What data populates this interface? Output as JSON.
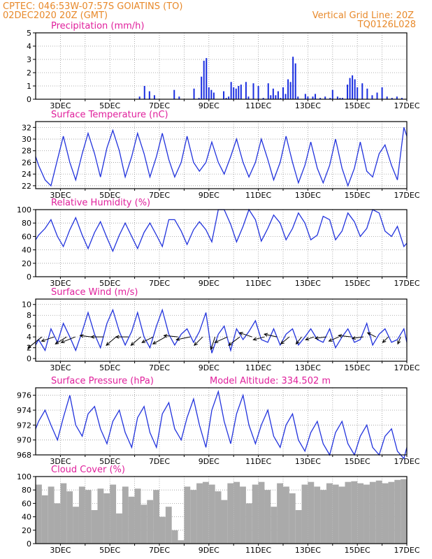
{
  "header": {
    "left_line1": "CPTEC:   046:53W-07:57S   GOIATINS (TO)",
    "left_line2": "02DEC2020 20Z (GMT)",
    "right_line1": "Vertical Grid Line: 20Z",
    "right_line2": "TQ0126L028"
  },
  "colors": {
    "line": "#2233dd",
    "bar": "#1a2ee0",
    "cloud": "#aaaaaa",
    "title": "#e0209c",
    "header": "#e8892a"
  },
  "x_labels": [
    "3DEC",
    "5DEC",
    "7DEC",
    "9DEC",
    "11DEC",
    "13DEC",
    "15DEC",
    "17DEC"
  ],
  "chart_data": [
    {
      "type": "bar",
      "title": "Precipitation (mm/h)",
      "x": [
        6.2,
        6.4,
        6.6,
        6.8,
        7.6,
        7.8,
        8.4,
        8.6,
        8.7,
        8.8,
        8.9,
        9.0,
        9.1,
        9.2,
        9.6,
        9.7,
        9.8,
        9.9,
        10.0,
        10.1,
        10.2,
        10.3,
        10.5,
        10.6,
        10.8,
        11.0,
        11.2,
        11.4,
        11.5,
        11.6,
        11.7,
        11.8,
        11.9,
        12.0,
        12.1,
        12.2,
        12.3,
        12.4,
        12.5,
        12.6,
        12.9,
        13.0,
        13.2,
        13.3,
        13.5,
        13.7,
        13.9,
        14.0,
        14.2,
        14.3,
        14.4,
        14.6,
        14.7,
        14.8,
        14.9,
        15.0,
        15.2,
        15.4,
        15.6,
        15.8,
        16.0,
        16.2,
        16.4,
        16.6,
        16.8
      ],
      "values": [
        0.2,
        1.0,
        0.6,
        0.3,
        0.7,
        0.2,
        0.8,
        0.1,
        1.7,
        2.9,
        3.1,
        0.9,
        0.7,
        0.5,
        0.6,
        0.1,
        0.2,
        1.3,
        0.9,
        0.8,
        1.0,
        1.1,
        1.3,
        0.2,
        1.2,
        1.0,
        0.1,
        1.2,
        0.3,
        0.8,
        0.3,
        0.6,
        0.1,
        0.9,
        0.4,
        1.5,
        1.3,
        3.2,
        2.7,
        0.2,
        0.4,
        0.2,
        0.2,
        0.4,
        0.1,
        0.2,
        0.1,
        0.7,
        0.2,
        0.1,
        0.1,
        1.1,
        1.6,
        1.8,
        1.5,
        0.9,
        1.2,
        0.8,
        0.3,
        0.5,
        0.9,
        0.2,
        0.1,
        0.2,
        0.1
      ],
      "xlim": [
        2.0,
        17.0
      ],
      "ylim": [
        0,
        5
      ],
      "yticks": [
        0,
        1,
        2,
        3,
        4,
        5
      ]
    },
    {
      "type": "line",
      "title": "Surface Temperature (nC)",
      "x": [
        2.0,
        2.12,
        2.38,
        2.62,
        2.88,
        3.12,
        3.38,
        3.62,
        3.88,
        4.12,
        4.38,
        4.62,
        4.88,
        5.12,
        5.38,
        5.62,
        5.88,
        6.12,
        6.38,
        6.62,
        6.88,
        7.12,
        7.38,
        7.62,
        7.88,
        8.12,
        8.38,
        8.62,
        8.88,
        9.12,
        9.38,
        9.62,
        9.88,
        10.12,
        10.38,
        10.62,
        10.88,
        11.12,
        11.38,
        11.62,
        11.88,
        12.12,
        12.38,
        12.62,
        12.88,
        13.12,
        13.38,
        13.62,
        13.88,
        14.12,
        14.38,
        14.62,
        14.88,
        15.12,
        15.38,
        15.62,
        15.88,
        16.12,
        16.38,
        16.62,
        16.88,
        17.0
      ],
      "values": [
        27.0,
        25.5,
        23.0,
        22.0,
        26.5,
        30.5,
        26.0,
        23.0,
        27.5,
        31.0,
        27.5,
        23.5,
        28.5,
        31.5,
        28.0,
        23.5,
        27.0,
        31.0,
        27.5,
        23.5,
        27.0,
        31.0,
        26.5,
        23.5,
        26.0,
        30.5,
        26.0,
        24.5,
        26.0,
        29.5,
        26.0,
        24.0,
        27.0,
        30.0,
        26.0,
        23.5,
        26.0,
        30.0,
        26.5,
        23.0,
        26.0,
        30.5,
        26.0,
        22.5,
        25.5,
        29.5,
        25.0,
        22.5,
        25.5,
        30.0,
        25.0,
        22.0,
        25.0,
        29.5,
        24.5,
        23.5,
        27.5,
        29.0,
        25.5,
        23.0,
        32.0,
        30.5
      ],
      "xlim": [
        2.0,
        17.0
      ],
      "ylim": [
        21.5,
        33
      ],
      "yticks": [
        22,
        24,
        26,
        28,
        30,
        32
      ]
    },
    {
      "type": "line",
      "title": "Relative Humidity (%)",
      "x": [
        2.0,
        2.12,
        2.38,
        2.62,
        2.88,
        3.12,
        3.38,
        3.62,
        3.88,
        4.12,
        4.38,
        4.62,
        4.88,
        5.12,
        5.38,
        5.62,
        5.88,
        6.12,
        6.38,
        6.62,
        6.88,
        7.12,
        7.38,
        7.62,
        7.88,
        8.12,
        8.38,
        8.62,
        8.88,
        9.12,
        9.38,
        9.62,
        9.88,
        10.12,
        10.38,
        10.62,
        10.88,
        11.12,
        11.38,
        11.62,
        11.88,
        12.12,
        12.38,
        12.62,
        12.88,
        13.12,
        13.38,
        13.62,
        13.88,
        14.12,
        14.38,
        14.62,
        14.88,
        15.12,
        15.38,
        15.62,
        15.88,
        16.12,
        16.38,
        16.62,
        16.88,
        17.0
      ],
      "values": [
        55,
        62,
        72,
        85,
        60,
        45,
        70,
        88,
        62,
        42,
        66,
        82,
        58,
        38,
        62,
        80,
        60,
        42,
        66,
        80,
        62,
        45,
        85,
        85,
        68,
        48,
        70,
        82,
        70,
        52,
        100,
        100,
        78,
        52,
        75,
        100,
        85,
        53,
        72,
        92,
        80,
        55,
        72,
        95,
        80,
        55,
        62,
        90,
        85,
        55,
        68,
        95,
        82,
        60,
        72,
        100,
        95,
        68,
        60,
        75,
        45,
        50
      ],
      "xlim": [
        2.0,
        17.0
      ],
      "ylim": [
        0,
        100
      ],
      "yticks": [
        0,
        20,
        40,
        60,
        80,
        100
      ]
    },
    {
      "type": "line",
      "title": "Surface Wind (m/s)",
      "x": [
        2.0,
        2.12,
        2.38,
        2.62,
        2.88,
        3.12,
        3.38,
        3.62,
        3.88,
        4.12,
        4.38,
        4.62,
        4.88,
        5.12,
        5.38,
        5.62,
        5.88,
        6.12,
        6.38,
        6.62,
        6.88,
        7.12,
        7.38,
        7.62,
        7.88,
        8.12,
        8.38,
        8.62,
        8.88,
        9.12,
        9.38,
        9.62,
        9.88,
        10.12,
        10.38,
        10.62,
        10.88,
        11.12,
        11.38,
        11.62,
        11.88,
        12.12,
        12.38,
        12.62,
        12.88,
        13.12,
        13.38,
        13.62,
        13.88,
        14.12,
        14.38,
        14.62,
        14.88,
        15.12,
        15.38,
        15.62,
        15.88,
        16.12,
        16.38,
        16.62,
        16.88,
        17.0
      ],
      "values": [
        2.5,
        3.5,
        1.5,
        5.5,
        3.0,
        6.5,
        4.0,
        1.5,
        5.0,
        8.5,
        4.5,
        2.0,
        6.5,
        9.0,
        5.0,
        2.5,
        5.0,
        8.5,
        4.0,
        2.0,
        6.0,
        9.0,
        4.5,
        2.5,
        4.5,
        5.5,
        3.0,
        5.0,
        8.5,
        1.0,
        4.5,
        6.0,
        1.5,
        5.5,
        3.5,
        5.0,
        7.0,
        3.5,
        3.0,
        5.5,
        2.5,
        4.5,
        5.5,
        2.5,
        4.0,
        5.5,
        3.5,
        3.0,
        5.5,
        2.0,
        4.0,
        5.5,
        3.0,
        3.5,
        6.5,
        2.5,
        4.5,
        5.5,
        3.0,
        3.5,
        5.5,
        3.0
      ],
      "wind_vectors": [
        {
          "day": 2.25,
          "u": -1.0,
          "v": -0.8
        },
        {
          "day": 2.75,
          "u": -0.9,
          "v": -0.3
        },
        {
          "day": 3.25,
          "u": -0.8,
          "v": -0.5
        },
        {
          "day": 3.6,
          "u": -1.0,
          "v": -0.4
        },
        {
          "day": 4.25,
          "u": -0.8,
          "v": 0.1
        },
        {
          "day": 4.75,
          "u": -0.9,
          "v": 0.0
        },
        {
          "day": 5.25,
          "u": -0.7,
          "v": -0.6
        },
        {
          "day": 5.75,
          "u": -0.9,
          "v": 0.0
        },
        {
          "day": 6.25,
          "u": -0.7,
          "v": -0.6
        },
        {
          "day": 6.75,
          "u": -0.8,
          "v": -0.4
        },
        {
          "day": 7.25,
          "u": -0.9,
          "v": -0.5
        },
        {
          "day": 7.75,
          "u": -1.0,
          "v": 0.1
        },
        {
          "day": 8.25,
          "u": -1.0,
          "v": -0.2
        },
        {
          "day": 8.75,
          "u": -0.6,
          "v": -0.6
        },
        {
          "day": 9.25,
          "u": -0.3,
          "v": -0.9
        },
        {
          "day": 9.75,
          "u": -0.9,
          "v": -0.4
        },
        {
          "day": 10.25,
          "u": -0.8,
          "v": -0.6
        },
        {
          "day": 10.75,
          "u": -0.9,
          "v": 0.3
        },
        {
          "day": 11.25,
          "u": -0.8,
          "v": -0.2
        },
        {
          "day": 11.75,
          "u": -0.9,
          "v": 0.2
        },
        {
          "day": 12.25,
          "u": -0.6,
          "v": -0.5
        },
        {
          "day": 12.75,
          "u": -0.4,
          "v": -0.5
        },
        {
          "day": 13.25,
          "u": -0.6,
          "v": -0.2
        },
        {
          "day": 13.75,
          "u": -0.8,
          "v": -0.1
        },
        {
          "day": 14.25,
          "u": -0.7,
          "v": -0.3
        },
        {
          "day": 14.75,
          "u": -0.9,
          "v": 0.1
        },
        {
          "day": 15.25,
          "u": -0.8,
          "v": -0.1
        },
        {
          "day": 15.75,
          "u": -0.6,
          "v": 0.3
        },
        {
          "day": 16.25,
          "u": -0.4,
          "v": -0.4
        },
        {
          "day": 16.75,
          "u": -0.2,
          "v": -0.5
        }
      ],
      "xlim": [
        2.0,
        17.0
      ],
      "ylim": [
        -0.5,
        11
      ],
      "yticks": [
        0,
        2,
        4,
        6,
        8,
        10
      ]
    },
    {
      "type": "line",
      "title": "Surface Pressure (hPa)",
      "annotation": "Model Altitude: 334.502 m",
      "x": [
        2.0,
        2.12,
        2.38,
        2.62,
        2.88,
        3.12,
        3.38,
        3.62,
        3.88,
        4.12,
        4.38,
        4.62,
        4.88,
        5.12,
        5.38,
        5.62,
        5.88,
        6.12,
        6.38,
        6.62,
        6.88,
        7.12,
        7.38,
        7.62,
        7.88,
        8.12,
        8.38,
        8.62,
        8.88,
        9.12,
        9.38,
        9.62,
        9.88,
        10.12,
        10.38,
        10.62,
        10.88,
        11.12,
        11.38,
        11.62,
        11.88,
        12.12,
        12.38,
        12.62,
        12.88,
        13.12,
        13.38,
        13.62,
        13.88,
        14.12,
        14.38,
        14.62,
        14.88,
        15.12,
        15.38,
        15.62,
        15.88,
        16.12,
        16.38,
        16.62,
        16.88,
        17.0
      ],
      "values": [
        971.5,
        972.5,
        974.0,
        972.0,
        970.0,
        973.0,
        976.0,
        972.0,
        970.5,
        973.5,
        974.5,
        971.5,
        969.5,
        972.5,
        974.0,
        971.0,
        969.0,
        973.0,
        974.5,
        971.0,
        969.0,
        973.5,
        975.0,
        971.5,
        970.0,
        973.0,
        975.5,
        972.0,
        969.0,
        974.0,
        976.5,
        972.5,
        969.5,
        973.5,
        976.0,
        972.0,
        969.5,
        972.0,
        974.0,
        970.5,
        969.0,
        972.0,
        973.5,
        970.0,
        968.5,
        971.0,
        972.5,
        969.5,
        968.0,
        971.0,
        972.5,
        969.5,
        968.0,
        970.5,
        972.0,
        969.0,
        968.0,
        970.5,
        971.5,
        968.5,
        967.5,
        969.0
      ],
      "xlim": [
        2.0,
        17.0
      ],
      "ylim": [
        968,
        977
      ],
      "yticks": [
        968,
        970,
        972,
        974,
        976
      ]
    },
    {
      "type": "bar",
      "title": "Cloud Cover (%)",
      "x": [
        2.0,
        2.25,
        2.5,
        2.75,
        3.0,
        3.25,
        3.5,
        3.75,
        4.0,
        4.25,
        4.5,
        4.75,
        5.0,
        5.25,
        5.5,
        5.75,
        6.0,
        6.25,
        6.5,
        6.75,
        7.0,
        7.25,
        7.5,
        7.75,
        8.0,
        8.25,
        8.5,
        8.75,
        9.0,
        9.25,
        9.5,
        9.75,
        10.0,
        10.25,
        10.5,
        10.75,
        11.0,
        11.25,
        11.5,
        11.75,
        12.0,
        12.25,
        12.5,
        12.75,
        13.0,
        13.25,
        13.5,
        13.75,
        14.0,
        14.25,
        14.5,
        14.75,
        15.0,
        15.25,
        15.5,
        15.75,
        16.0,
        16.25,
        16.5,
        16.75
      ],
      "values": [
        88,
        72,
        85,
        60,
        90,
        78,
        55,
        85,
        80,
        50,
        82,
        75,
        88,
        45,
        85,
        70,
        82,
        58,
        65,
        80,
        40,
        55,
        20,
        5,
        85,
        80,
        90,
        92,
        88,
        78,
        65,
        90,
        92,
        85,
        60,
        88,
        92,
        80,
        55,
        90,
        85,
        75,
        50,
        88,
        92,
        85,
        80,
        90,
        88,
        85,
        92,
        93,
        90,
        88,
        92,
        94,
        90,
        92,
        95,
        96
      ],
      "xlim": [
        2.0,
        17.0
      ],
      "ylim": [
        0,
        100
      ],
      "yticks": [
        0,
        20,
        40,
        60,
        80,
        100
      ]
    }
  ]
}
